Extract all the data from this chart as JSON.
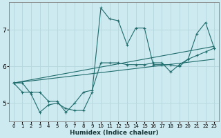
{
  "xlabel": "Humidex (Indice chaleur)",
  "bg_color": "#cdeaf0",
  "grid_color": "#b8d8e0",
  "line_color": "#1e6b6b",
  "xlim": [
    -0.5,
    23.5
  ],
  "ylim": [
    4.5,
    7.75
  ],
  "yticks": [
    5,
    6,
    7
  ],
  "xticks": [
    0,
    1,
    2,
    3,
    4,
    5,
    6,
    7,
    8,
    9,
    10,
    11,
    12,
    13,
    14,
    15,
    16,
    17,
    18,
    19,
    20,
    21,
    22,
    23
  ],
  "line1_x": [
    0,
    1,
    2,
    3,
    4,
    5,
    6,
    7,
    8,
    9,
    10,
    11,
    12,
    13,
    14,
    15,
    16,
    17,
    18,
    19,
    20,
    21,
    22,
    23
  ],
  "line1_y": [
    5.55,
    5.55,
    5.25,
    4.75,
    4.95,
    5.0,
    4.85,
    4.8,
    4.8,
    5.3,
    7.6,
    7.3,
    7.25,
    6.6,
    7.05,
    7.05,
    6.05,
    6.05,
    6.05,
    6.0,
    6.2,
    6.9,
    7.2,
    6.5
  ],
  "line2_x": [
    0,
    1,
    2,
    3,
    4,
    5,
    6,
    7,
    8,
    9,
    10,
    11,
    12,
    13,
    14,
    15,
    16,
    17,
    18,
    19,
    20,
    21,
    22,
    23
  ],
  "line2_y": [
    5.55,
    5.3,
    5.3,
    5.3,
    5.05,
    5.05,
    4.75,
    5.0,
    5.3,
    5.35,
    6.1,
    6.1,
    6.1,
    6.05,
    6.05,
    6.05,
    6.1,
    6.1,
    5.85,
    6.05,
    6.2,
    6.3,
    6.4,
    6.5
  ],
  "line3_x": [
    0,
    23
  ],
  "line3_y": [
    5.55,
    6.55
  ],
  "line4_x": [
    0,
    23
  ],
  "line4_y": [
    5.55,
    6.2
  ]
}
